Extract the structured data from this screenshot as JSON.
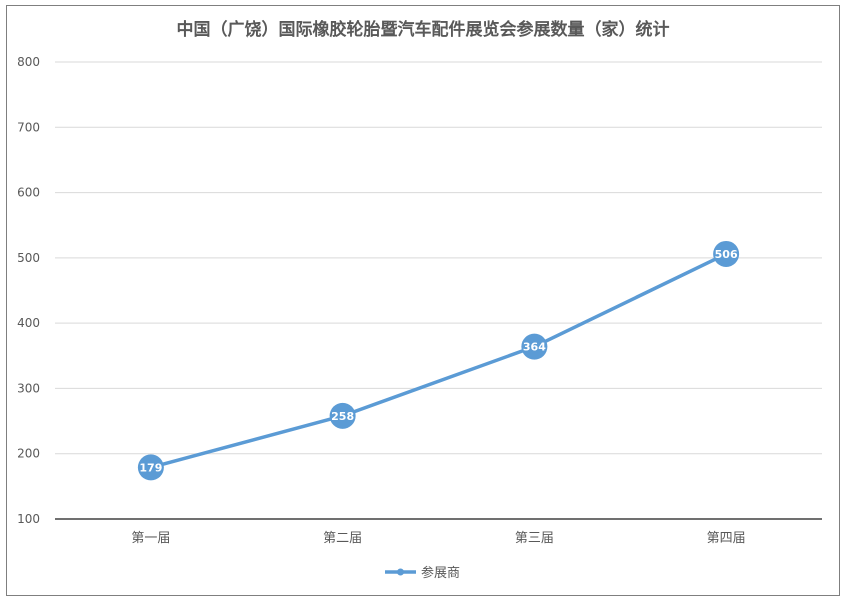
{
  "chart_data": {
    "type": "line",
    "title": "中国（广饶）国际橡胶轮胎暨汽车配件展览会参展数量（家）统计",
    "categories": [
      "第一届",
      "第二届",
      "第三届",
      "第四届"
    ],
    "series": [
      {
        "name": "参展商",
        "values": [
          179,
          258,
          364,
          506
        ]
      }
    ],
    "ylim": [
      100,
      800
    ],
    "yticks": [
      100,
      200,
      300,
      400,
      500,
      600,
      700,
      800
    ],
    "grid": true,
    "legend": "bottom",
    "colors": {
      "series": "#5b9bd5",
      "grid": "#d9d9d9",
      "axis": "#404040"
    }
  }
}
